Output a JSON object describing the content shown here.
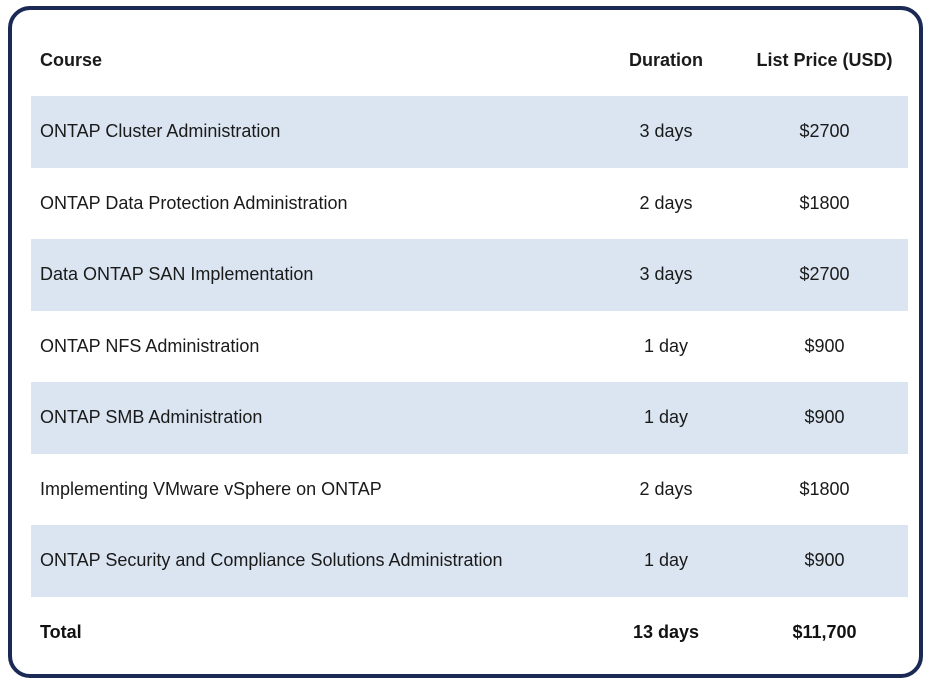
{
  "colors": {
    "frame_border": "#1b2a55",
    "stripe": "#dbe5f1",
    "background": "#ffffff"
  },
  "table": {
    "headers": {
      "course": "Course",
      "duration": "Duration",
      "price": "List Price (USD)"
    },
    "rows": [
      {
        "course": "ONTAP Cluster Administration",
        "duration": "3 days",
        "price": "$2700"
      },
      {
        "course": "ONTAP Data Protection Administration",
        "duration": "2 days",
        "price": "$1800"
      },
      {
        "course": "Data ONTAP SAN Implementation",
        "duration": "3 days",
        "price": "$2700"
      },
      {
        "course": "ONTAP NFS Administration",
        "duration": "1 day",
        "price": "$900"
      },
      {
        "course": "ONTAP SMB Administration",
        "duration": "1 day",
        "price": "$900"
      },
      {
        "course": "Implementing VMware vSphere on ONTAP",
        "duration": "2 days",
        "price": "$1800"
      },
      {
        "course": "ONTAP Security and Compliance Solutions Administration",
        "duration": "1 day",
        "price": "$900"
      }
    ],
    "total": {
      "label": "Total",
      "duration": "13 days",
      "price": "$11,700"
    }
  }
}
